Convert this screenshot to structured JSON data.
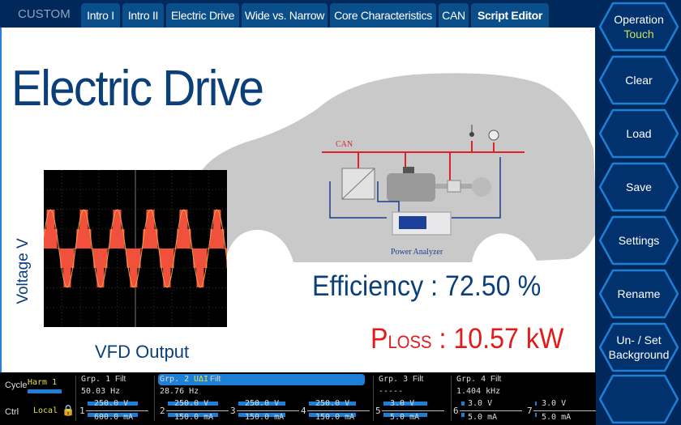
{
  "topbar": {
    "mode": "CUSTOM",
    "tabs": [
      {
        "label": "Intro I"
      },
      {
        "label": "Intro II"
      },
      {
        "label": "Electric Drive"
      },
      {
        "label": "Wide vs. Narrow"
      },
      {
        "label": "Core Characteristics"
      },
      {
        "label": "CAN"
      },
      {
        "label": "Script Editor",
        "active": true
      }
    ]
  },
  "main": {
    "title": "Electric Drive",
    "scope": {
      "ylabel": "Voltage V",
      "caption": "VFD Output",
      "trace_color": "#f0503c"
    },
    "diagram": {
      "bus_label": "CAN",
      "device_label": "Power Analyzer"
    },
    "efficiency": "Efficiency : 72.50 %",
    "ploss_p": "P",
    "ploss_sub": "LOSS",
    "ploss_value": " : 10.57 kW"
  },
  "sidebar": {
    "buttons": [
      {
        "label": "Operation",
        "sub": "Touch"
      },
      {
        "label": "Clear"
      },
      {
        "label": "Load"
      },
      {
        "label": "Save"
      },
      {
        "label": "Settings"
      },
      {
        "label": "Rename"
      },
      {
        "label": "Un- / Set Background"
      },
      {
        "label": ""
      }
    ]
  },
  "status": {
    "cycle_label": "Cycle",
    "cycle_value": "Harm 1",
    "ctrl_label": "Ctrl",
    "ctrl_value": "Local",
    "groups": [
      {
        "name": "Grp. 1",
        "filt": "Filt",
        "freq": "50.03  Hz"
      },
      {
        "name": "Grp. 2",
        "mode": "UΔI",
        "filt": "Filt",
        "freq": "28.76  Hz"
      },
      {
        "name": "Grp. 3",
        "filt": "Filt",
        "freq": "-----"
      },
      {
        "name": "Grp. 4",
        "filt": "Filt",
        "freq": "1.404 kHz"
      }
    ],
    "elements": [
      {
        "n": "1",
        "v": "250.0 V",
        "i": "600.0 mA"
      },
      {
        "n": "2",
        "v": "250.0 V",
        "i": "150.0 mA"
      },
      {
        "n": "3",
        "v": "250.0 V",
        "i": "150.0 mA"
      },
      {
        "n": "4",
        "v": "250.0 V",
        "i": "150.0 mA"
      },
      {
        "n": "5",
        "v": "3.0 V",
        "i": "5.0 mA"
      },
      {
        "n": "6",
        "v": "3.0 V",
        "i": "5.0 mA"
      },
      {
        "n": "7",
        "v": "3.0 V",
        "i": "5.0 mA"
      }
    ]
  }
}
